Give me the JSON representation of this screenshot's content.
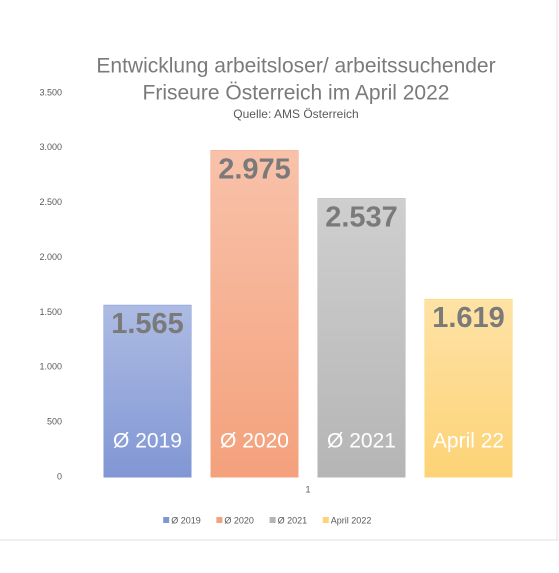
{
  "chart_data": {
    "type": "bar",
    "title": [
      "Entwicklung arbeitsloser/ arbeitssuchender",
      "Friseure Österreich im April 2022"
    ],
    "subtitle": "Quelle: AMS Österreich",
    "categories": [
      "1"
    ],
    "series": [
      {
        "name": "Ø 2019",
        "color": "#8197d4",
        "values": [
          1565
        ],
        "value_labels": [
          "1.565"
        ]
      },
      {
        "name": "Ø 2020",
        "color": "#f4a17c",
        "values": [
          2975
        ],
        "value_labels": [
          "2.975"
        ]
      },
      {
        "name": "Ø 2021",
        "color": "#b5b5b5",
        "values": [
          2537
        ],
        "value_labels": [
          "2.537"
        ]
      },
      {
        "name": "April 2022",
        "color": "#fdd376",
        "values": [
          1619
        ],
        "value_labels": [
          "1.619"
        ]
      }
    ],
    "bar_labels": [
      "Ø 2019",
      "Ø 2020",
      "Ø 2021",
      "April 22"
    ],
    "ylim": [
      0,
      3500
    ],
    "yticks": [
      0,
      500,
      {
        "value": 1000,
        "label": "1.000"
      },
      {
        "value": 1500,
        "label": "1.500"
      },
      {
        "value": 2000,
        "label": "2.000"
      },
      {
        "value": 2500,
        "label": "2.500"
      },
      {
        "value": 3000,
        "label": "3.000"
      },
      {
        "value": 3500,
        "label": "3.500"
      }
    ],
    "grid": false,
    "legend": "bottom"
  }
}
